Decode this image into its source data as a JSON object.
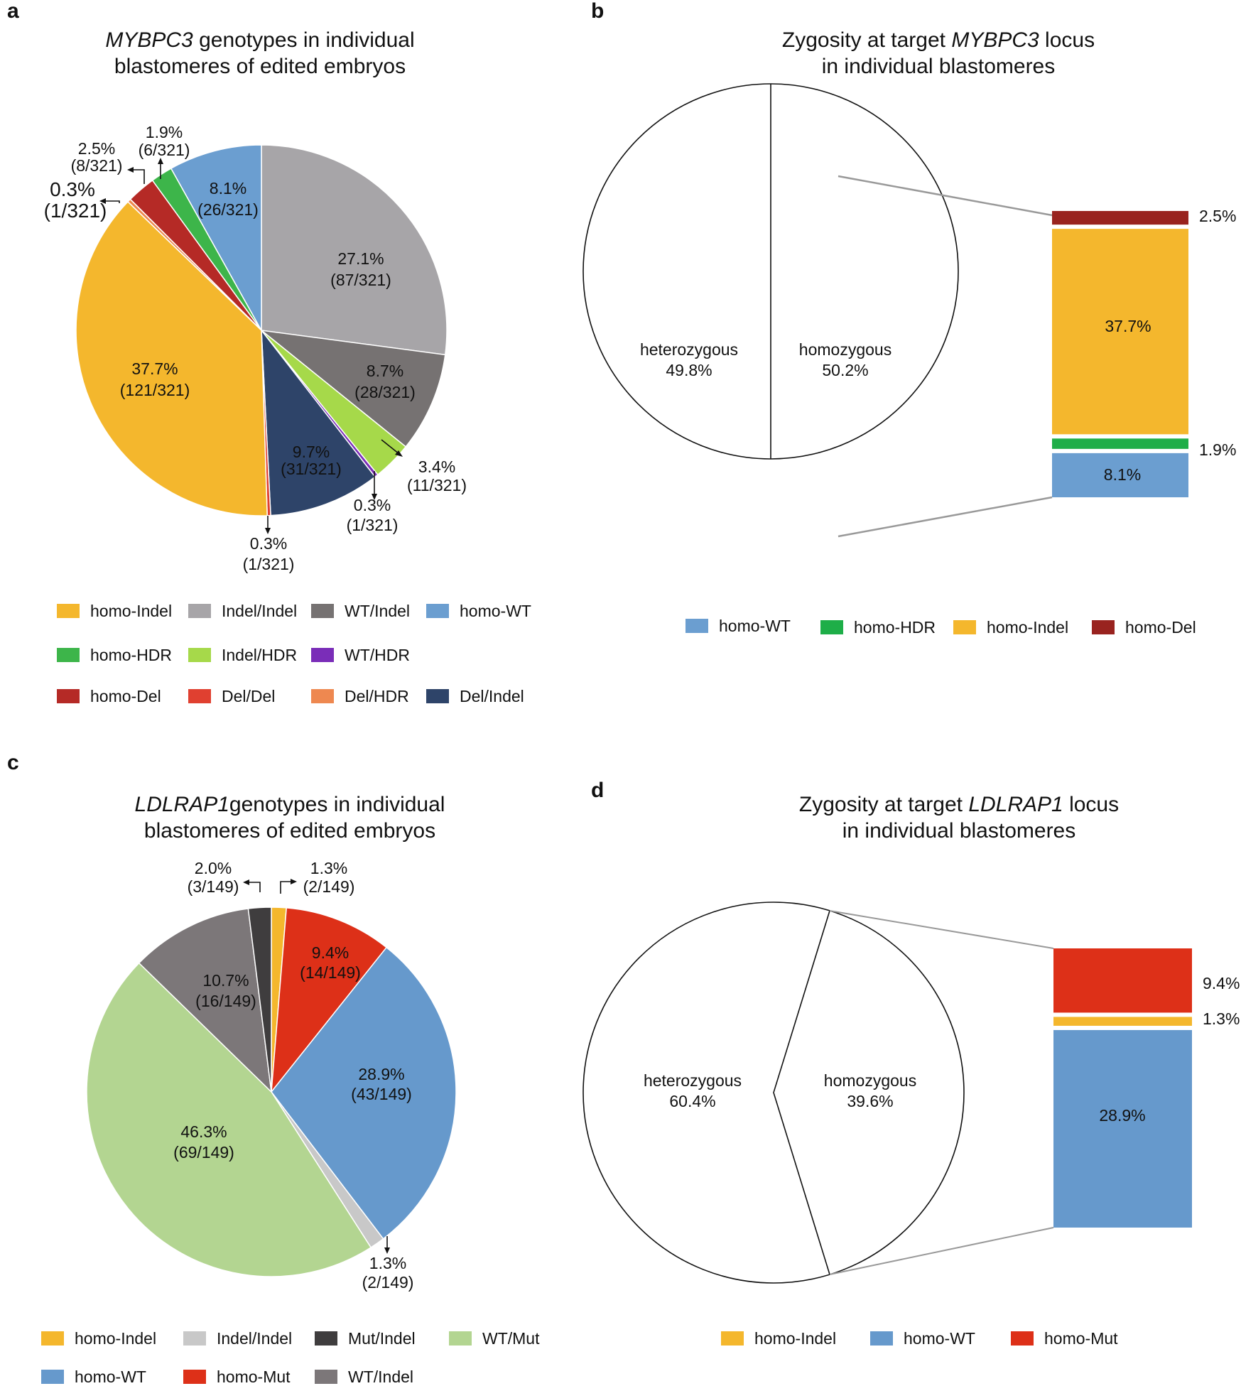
{
  "colors": {
    "homo_indel": "#F4B72D",
    "indel_indel": "#A7A5A8",
    "wt_indel": "#767272",
    "homo_wt": "#6B9ED0",
    "homo_hdr": "#3DB54A",
    "indel_hdr": "#A6D94A",
    "wt_hdr": "#7A2DB8",
    "homo_del": "#B52A26",
    "del_del": "#E04030",
    "del_hdr": "#EE8850",
    "del_indel": "#2E4469",
    "mut_indel": "#3F3D3E",
    "wt_mut": "#B3D591",
    "homo_mut": "#DD3018",
    "indel_indel_c": "#C8C8C8",
    "wt_indel_c": "#7C7779",
    "homo_wt_c": "#6699CC",
    "homo_hdr_b": "#1EAE48",
    "homo_del_b": "#99231F"
  },
  "chart_data": [
    {
      "panel": "a",
      "type": "pie",
      "title_italic": "MYBPC3",
      "title_rest": " genotypes in individual",
      "title_line2": "blastomeres of edited embryos",
      "slices": [
        {
          "key": "indel_indel",
          "name": "Indel/Indel",
          "value": 27.1,
          "label_pct": "27.1%",
          "label_frac": "(87/321)"
        },
        {
          "key": "wt_indel",
          "name": "WT/Indel",
          "value": 8.7,
          "label_pct": "8.7%",
          "label_frac": "(28/321)"
        },
        {
          "key": "indel_hdr",
          "name": "Indel/HDR",
          "value": 3.4,
          "label_pct": "3.4%",
          "label_frac": "(11/321)"
        },
        {
          "key": "wt_hdr",
          "name": "WT/HDR",
          "value": 0.3,
          "label_pct": "0.3%",
          "label_frac": "(1/321)"
        },
        {
          "key": "del_indel",
          "name": "Del/Indel",
          "value": 9.7,
          "label_pct": "9.7%",
          "label_frac": "(31/321)"
        },
        {
          "key": "del_del",
          "name": "Del/Del",
          "value": 0.3,
          "label_pct": "0.3%",
          "label_frac": "(1/321)"
        },
        {
          "key": "homo_indel",
          "name": "homo-Indel",
          "value": 37.7,
          "label_pct": "37.7%",
          "label_frac": "(121/321)"
        },
        {
          "key": "del_hdr",
          "name": "Del/HDR",
          "value": 0.3,
          "label_pct": "0.3%",
          "label_frac": "(1/321)"
        },
        {
          "key": "homo_del",
          "name": "homo-Del",
          "value": 2.5,
          "label_pct": "2.5%",
          "label_frac": "(8/321)"
        },
        {
          "key": "homo_hdr",
          "name": "homo-HDR",
          "value": 1.9,
          "label_pct": "1.9%",
          "label_frac": "(6/321)"
        },
        {
          "key": "homo_wt",
          "name": "homo-WT",
          "value": 8.1,
          "label_pct": "8.1%",
          "label_frac": "(26/321)"
        }
      ],
      "legend": [
        [
          "homo_indel",
          "homo-Indel"
        ],
        [
          "indel_indel",
          "Indel/Indel"
        ],
        [
          "wt_indel",
          "WT/Indel"
        ],
        [
          "homo_wt",
          "homo-WT"
        ],
        [
          "homo_hdr",
          "homo-HDR"
        ],
        [
          "indel_hdr",
          "Indel/HDR"
        ],
        [
          "wt_hdr",
          "WT/HDR"
        ],
        [
          "homo_del",
          "homo-Del"
        ],
        [
          "del_del",
          "Del/Del"
        ],
        [
          "del_hdr",
          "Del/HDR"
        ],
        [
          "del_indel",
          "Del/Indel"
        ]
      ]
    },
    {
      "panel": "b",
      "type": "pie-of-bar",
      "title_pre": "Zygosity at target ",
      "title_italic": "MYBPC3",
      "title_post": " locus",
      "title_line2": "in individual blastomeres",
      "split": [
        {
          "name": "heterozygous",
          "value": 49.8,
          "label": "49.8%"
        },
        {
          "name": "homozygous",
          "value": 50.2,
          "label": "50.2%"
        }
      ],
      "stack": [
        {
          "key": "homo_del_b",
          "name": "homo-Del",
          "value": 2.5,
          "label": "2.5%"
        },
        {
          "key": "homo_indel",
          "name": "homo-Indel",
          "value": 37.7,
          "label": "37.7%"
        },
        {
          "key": "homo_hdr_b",
          "name": "homo-HDR",
          "value": 1.9,
          "label": "1.9%"
        },
        {
          "key": "homo_wt",
          "name": "homo-WT",
          "value": 8.1,
          "label": "8.1%"
        }
      ],
      "legend": [
        [
          "homo_wt",
          "homo-WT"
        ],
        [
          "homo_hdr_b",
          "homo-HDR"
        ],
        [
          "homo_indel",
          "homo-Indel"
        ],
        [
          "homo_del_b",
          "homo-Del"
        ]
      ]
    },
    {
      "panel": "c",
      "type": "pie",
      "title_italic": "LDLRAP1",
      "title_rest": "genotypes in individual",
      "title_line2": "blastomeres of edited embryos",
      "slices": [
        {
          "key": "homo_indel",
          "name": "homo-Indel",
          "value": 1.3,
          "label_pct": "1.3%",
          "label_frac": "(2/149)"
        },
        {
          "key": "homo_mut",
          "name": "homo-Mut",
          "value": 9.4,
          "label_pct": "9.4%",
          "label_frac": "(14/149)"
        },
        {
          "key": "homo_wt_c",
          "name": "homo-WT",
          "value": 28.9,
          "label_pct": "28.9%",
          "label_frac": "(43/149)"
        },
        {
          "key": "indel_indel_c",
          "name": "Indel/Indel",
          "value": 1.3,
          "label_pct": "1.3%",
          "label_frac": "(2/149)"
        },
        {
          "key": "wt_mut",
          "name": "WT/Mut",
          "value": 46.3,
          "label_pct": "46.3%",
          "label_frac": "(69/149)"
        },
        {
          "key": "wt_indel_c",
          "name": "WT/Indel",
          "value": 10.7,
          "label_pct": "10.7%",
          "label_frac": "(16/149)"
        },
        {
          "key": "mut_indel",
          "name": "Mut/Indel",
          "value": 2.0,
          "label_pct": "2.0%",
          "label_frac": "(3/149)"
        }
      ],
      "legend": [
        [
          "homo_indel",
          "homo-Indel"
        ],
        [
          "indel_indel_c",
          "Indel/Indel"
        ],
        [
          "mut_indel",
          "Mut/Indel"
        ],
        [
          "wt_mut",
          "WT/Mut"
        ],
        [
          "homo_wt_c",
          "homo-WT"
        ],
        [
          "homo_mut",
          "homo-Mut"
        ],
        [
          "wt_indel_c",
          "WT/Indel"
        ]
      ]
    },
    {
      "panel": "d",
      "type": "pie-of-bar",
      "title_pre": "Zygosity at target ",
      "title_italic": "LDLRAP1",
      "title_post": " locus",
      "title_line2": "in individual blastomeres",
      "split": [
        {
          "name": "heterozygous",
          "value": 60.4,
          "label": "60.4%"
        },
        {
          "name": "homozygous",
          "value": 39.6,
          "label": "39.6%"
        }
      ],
      "stack": [
        {
          "key": "homo_mut",
          "name": "homo-Mut",
          "value": 9.4,
          "label": "9.4%"
        },
        {
          "key": "homo_indel",
          "name": "homo-Indel",
          "value": 1.3,
          "label": "1.3%"
        },
        {
          "key": "homo_wt_c",
          "name": "homo-WT",
          "value": 28.9,
          "label": "28.9%"
        }
      ],
      "legend": [
        [
          "homo_indel",
          "homo-Indel"
        ],
        [
          "homo_wt_c",
          "homo-WT"
        ],
        [
          "homo_mut",
          "homo-Mut"
        ]
      ]
    }
  ]
}
